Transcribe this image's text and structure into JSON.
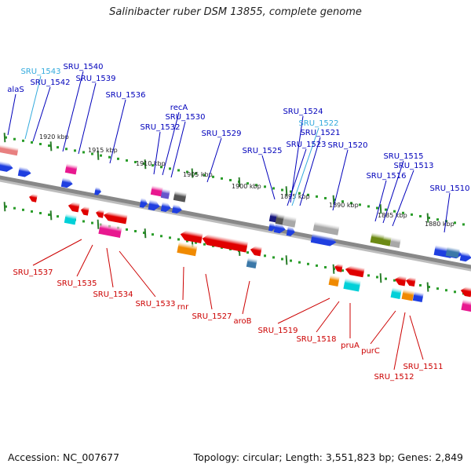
{
  "title": "Salinibacter ruber DSM 13855, complete genome",
  "footer": {
    "accession": "Accession: NC_007677",
    "summary": "Topology: circular; Length: 3,551,823 bp; Genes: 2,849"
  },
  "colors": {
    "backbone": "#888888",
    "tick_major": "#2a7d2a",
    "tick_minor": "#2a9d2a",
    "label_plus": "#0000bb",
    "label_plus_alt": "#33aadd",
    "label_minus": "#cc0000"
  },
  "scale_labels": [
    "1920 kbp",
    "1915 kbp",
    "1910 kbp",
    "1905 kbp",
    "1900 kbp",
    "1895 kbp",
    "1890 kbp",
    "1885 kbp",
    "1880 kbp"
  ],
  "top_labels": [
    {
      "text": "alaS"
    },
    {
      "text": "SRU_1543",
      "alt": true
    },
    {
      "text": "SRU_1542"
    },
    {
      "text": "SRU_1540"
    },
    {
      "text": "SRU_1539"
    },
    {
      "text": "SRU_1536"
    },
    {
      "text": "recA"
    },
    {
      "text": "SRU_1532"
    },
    {
      "text": "SRU_1530"
    },
    {
      "text": "SRU_1529"
    },
    {
      "text": "SRU_1524"
    },
    {
      "text": "SRU_1525"
    },
    {
      "text": "SRU_1522",
      "alt": true
    },
    {
      "text": "SRU_1521"
    },
    {
      "text": "SRU_1523"
    },
    {
      "text": "SRU_1520"
    },
    {
      "text": "SRU_1515"
    },
    {
      "text": "SRU_1513"
    },
    {
      "text": "SRU_1516"
    },
    {
      "text": "SRU_1510"
    }
  ],
  "bottom_labels": [
    {
      "text": "SRU_1537"
    },
    {
      "text": "SRU_1535"
    },
    {
      "text": "SRU_1534"
    },
    {
      "text": "SRU_1533"
    },
    {
      "text": "rnr"
    },
    {
      "text": "SRU_1527"
    },
    {
      "text": "aroB"
    },
    {
      "text": "SRU_1519"
    },
    {
      "text": "SRU_1518"
    },
    {
      "text": "pruA"
    },
    {
      "text": "purC"
    },
    {
      "text": "SRU_1511"
    },
    {
      "text": "SRU_1512"
    }
  ]
}
